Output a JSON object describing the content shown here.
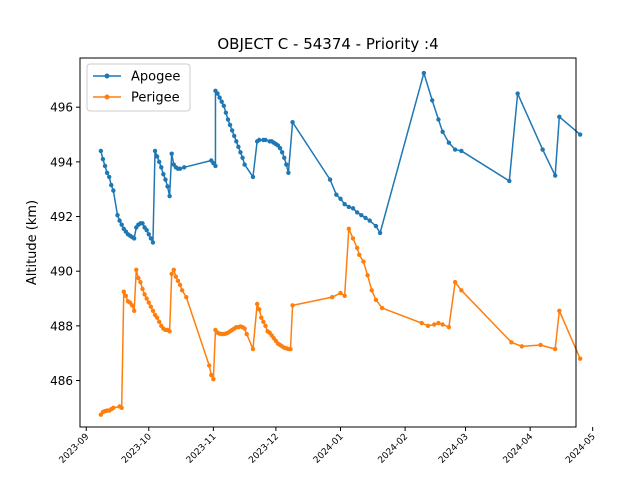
{
  "chart_data": {
    "type": "line",
    "title": "OBJECT C - 54374 - Priority :4",
    "xlabel": "",
    "ylabel": "Altitude (km)",
    "xlim": [
      "2023-08-29",
      "2024-04-23"
    ],
    "ylim": [
      484.3,
      497.8
    ],
    "yticks": [
      486,
      488,
      490,
      492,
      494,
      496
    ],
    "xticks": [
      "2023-09",
      "2023-10",
      "2023-11",
      "2023-12",
      "2024-01",
      "2024-02",
      "2024-03",
      "2024-04",
      "2024-05"
    ],
    "grid": false,
    "legend_position": "upper left",
    "series": [
      {
        "name": "Apogee",
        "color": "#1f77b4",
        "points": [
          [
            "2023-09-08",
            494.4
          ],
          [
            "2023-09-09",
            494.1
          ],
          [
            "2023-09-10",
            493.85
          ],
          [
            "2023-09-11",
            493.6
          ],
          [
            "2023-09-12",
            493.45
          ],
          [
            "2023-09-13",
            493.15
          ],
          [
            "2023-09-14",
            492.95
          ],
          [
            "2023-09-16",
            492.05
          ],
          [
            "2023-09-17",
            491.85
          ],
          [
            "2023-09-18",
            491.7
          ],
          [
            "2023-09-19",
            491.55
          ],
          [
            "2023-09-20",
            491.45
          ],
          [
            "2023-09-21",
            491.35
          ],
          [
            "2023-09-22",
            491.3
          ],
          [
            "2023-09-23",
            491.25
          ],
          [
            "2023-09-24",
            491.2
          ],
          [
            "2023-09-25",
            491.6
          ],
          [
            "2023-09-26",
            491.7
          ],
          [
            "2023-09-27",
            491.75
          ],
          [
            "2023-09-28",
            491.75
          ],
          [
            "2023-09-29",
            491.6
          ],
          [
            "2023-09-30",
            491.5
          ],
          [
            "2023-10-01",
            491.35
          ],
          [
            "2023-10-02",
            491.2
          ],
          [
            "2023-10-03",
            491.05
          ],
          [
            "2023-10-04",
            494.4
          ],
          [
            "2023-10-05",
            494.2
          ],
          [
            "2023-10-06",
            494.0
          ],
          [
            "2023-10-07",
            493.8
          ],
          [
            "2023-10-08",
            493.55
          ],
          [
            "2023-10-09",
            493.35
          ],
          [
            "2023-10-10",
            493.1
          ],
          [
            "2023-10-11",
            492.75
          ],
          [
            "2023-10-12",
            494.3
          ],
          [
            "2023-10-13",
            493.9
          ],
          [
            "2023-10-14",
            493.8
          ],
          [
            "2023-10-15",
            493.75
          ],
          [
            "2023-10-16",
            493.75
          ],
          [
            "2023-10-18",
            493.8
          ],
          [
            "2023-10-31",
            494.05
          ],
          [
            "2023-11-01",
            493.95
          ],
          [
            "2023-11-02",
            493.85
          ],
          [
            "2023-11-02",
            496.6
          ],
          [
            "2023-11-03",
            496.5
          ],
          [
            "2023-11-04",
            496.35
          ],
          [
            "2023-11-05",
            496.2
          ],
          [
            "2023-11-06",
            496.05
          ],
          [
            "2023-11-07",
            495.8
          ],
          [
            "2023-11-08",
            495.55
          ],
          [
            "2023-11-09",
            495.35
          ],
          [
            "2023-11-10",
            495.15
          ],
          [
            "2023-11-11",
            494.95
          ],
          [
            "2023-11-12",
            494.75
          ],
          [
            "2023-11-13",
            494.55
          ],
          [
            "2023-11-14",
            494.35
          ],
          [
            "2023-11-15",
            494.15
          ],
          [
            "2023-11-16",
            493.9
          ],
          [
            "2023-11-20",
            493.45
          ],
          [
            "2023-11-22",
            494.75
          ],
          [
            "2023-11-23",
            494.8
          ],
          [
            "2023-11-25",
            494.8
          ],
          [
            "2023-11-26",
            494.8
          ],
          [
            "2023-11-28",
            494.75
          ],
          [
            "2023-11-29",
            494.75
          ],
          [
            "2023-11-30",
            494.7
          ],
          [
            "2023-12-01",
            494.65
          ],
          [
            "2023-12-02",
            494.6
          ],
          [
            "2023-12-03",
            494.5
          ],
          [
            "2023-12-04",
            494.35
          ],
          [
            "2023-12-05",
            494.15
          ],
          [
            "2023-12-06",
            493.9
          ],
          [
            "2023-12-07",
            493.6
          ],
          [
            "2023-12-09",
            495.45
          ],
          [
            "2023-12-27",
            493.35
          ],
          [
            "2023-12-30",
            492.8
          ],
          [
            "2024-01-01",
            492.65
          ],
          [
            "2024-01-03",
            492.45
          ],
          [
            "2024-01-05",
            492.35
          ],
          [
            "2024-01-07",
            492.3
          ],
          [
            "2024-01-09",
            492.15
          ],
          [
            "2024-01-11",
            492.05
          ],
          [
            "2024-01-13",
            491.95
          ],
          [
            "2024-01-15",
            491.85
          ],
          [
            "2024-01-18",
            491.65
          ],
          [
            "2024-01-20",
            491.4
          ],
          [
            "2024-02-10",
            497.25
          ],
          [
            "2024-02-14",
            496.25
          ],
          [
            "2024-02-17",
            495.55
          ],
          [
            "2024-02-19",
            495.1
          ],
          [
            "2024-02-22",
            494.7
          ],
          [
            "2024-02-25",
            494.45
          ],
          [
            "2024-02-28",
            494.4
          ],
          [
            "2024-03-22",
            493.3
          ],
          [
            "2024-03-26",
            496.5
          ],
          [
            "2024-04-07",
            494.45
          ],
          [
            "2024-04-13",
            493.5
          ],
          [
            "2024-04-15",
            495.65
          ],
          [
            "2024-04-25",
            495.0
          ]
        ]
      },
      {
        "name": "Perigee",
        "color": "#ff7f0e",
        "points": [
          [
            "2023-09-08",
            484.75
          ],
          [
            "2023-09-09",
            484.85
          ],
          [
            "2023-09-10",
            484.88
          ],
          [
            "2023-09-11",
            484.9
          ],
          [
            "2023-09-12",
            484.9
          ],
          [
            "2023-09-13",
            484.95
          ],
          [
            "2023-09-14",
            485.0
          ],
          [
            "2023-09-17",
            485.05
          ],
          [
            "2023-09-18",
            485.0
          ],
          [
            "2023-09-19",
            489.25
          ],
          [
            "2023-09-20",
            489.1
          ],
          [
            "2023-09-21",
            488.9
          ],
          [
            "2023-09-22",
            488.85
          ],
          [
            "2023-09-23",
            488.75
          ],
          [
            "2023-09-24",
            488.55
          ],
          [
            "2023-09-25",
            490.05
          ],
          [
            "2023-09-26",
            489.75
          ],
          [
            "2023-09-27",
            489.6
          ],
          [
            "2023-09-28",
            489.35
          ],
          [
            "2023-09-29",
            489.15
          ],
          [
            "2023-09-30",
            489.0
          ],
          [
            "2023-10-01",
            488.85
          ],
          [
            "2023-10-02",
            488.7
          ],
          [
            "2023-10-03",
            488.55
          ],
          [
            "2023-10-04",
            488.4
          ],
          [
            "2023-10-05",
            488.3
          ],
          [
            "2023-10-06",
            488.15
          ],
          [
            "2023-10-07",
            488.0
          ],
          [
            "2023-10-08",
            487.9
          ],
          [
            "2023-10-09",
            487.85
          ],
          [
            "2023-10-10",
            487.85
          ],
          [
            "2023-10-11",
            487.8
          ],
          [
            "2023-10-12",
            489.9
          ],
          [
            "2023-10-13",
            490.05
          ],
          [
            "2023-10-14",
            489.8
          ],
          [
            "2023-10-15",
            489.65
          ],
          [
            "2023-10-16",
            489.5
          ],
          [
            "2023-10-17",
            489.3
          ],
          [
            "2023-10-19",
            489.05
          ],
          [
            "2023-10-30",
            486.55
          ],
          [
            "2023-10-31",
            486.2
          ],
          [
            "2023-11-01",
            486.05
          ],
          [
            "2023-11-02",
            487.85
          ],
          [
            "2023-11-03",
            487.75
          ],
          [
            "2023-11-04",
            487.72
          ],
          [
            "2023-11-05",
            487.7
          ],
          [
            "2023-11-06",
            487.7
          ],
          [
            "2023-11-07",
            487.72
          ],
          [
            "2023-11-08",
            487.75
          ],
          [
            "2023-11-09",
            487.8
          ],
          [
            "2023-11-10",
            487.85
          ],
          [
            "2023-11-11",
            487.9
          ],
          [
            "2023-11-12",
            487.95
          ],
          [
            "2023-11-13",
            487.95
          ],
          [
            "2023-11-14",
            487.98
          ],
          [
            "2023-11-15",
            487.95
          ],
          [
            "2023-11-16",
            487.9
          ],
          [
            "2023-11-17",
            487.7
          ],
          [
            "2023-11-20",
            487.15
          ],
          [
            "2023-11-22",
            488.8
          ],
          [
            "2023-11-23",
            488.6
          ],
          [
            "2023-11-24",
            488.3
          ],
          [
            "2023-11-25",
            488.15
          ],
          [
            "2023-11-26",
            488.0
          ],
          [
            "2023-11-27",
            487.8
          ],
          [
            "2023-11-28",
            487.75
          ],
          [
            "2023-11-29",
            487.65
          ],
          [
            "2023-11-30",
            487.55
          ],
          [
            "2023-12-01",
            487.45
          ],
          [
            "2023-12-02",
            487.35
          ],
          [
            "2023-12-03",
            487.3
          ],
          [
            "2023-12-04",
            487.25
          ],
          [
            "2023-12-05",
            487.2
          ],
          [
            "2023-12-06",
            487.18
          ],
          [
            "2023-12-07",
            487.15
          ],
          [
            "2023-12-08",
            487.15
          ],
          [
            "2023-12-09",
            488.75
          ],
          [
            "2023-12-28",
            489.05
          ],
          [
            "2024-01-01",
            489.2
          ],
          [
            "2024-01-03",
            489.1
          ],
          [
            "2024-01-05",
            491.55
          ],
          [
            "2024-01-07",
            491.2
          ],
          [
            "2024-01-09",
            490.85
          ],
          [
            "2024-01-10",
            490.6
          ],
          [
            "2024-01-12",
            490.35
          ],
          [
            "2024-01-14",
            489.85
          ],
          [
            "2024-01-16",
            489.3
          ],
          [
            "2024-01-18",
            488.95
          ],
          [
            "2024-01-21",
            488.65
          ],
          [
            "2024-02-09",
            488.1
          ],
          [
            "2024-02-12",
            488.0
          ],
          [
            "2024-02-15",
            488.05
          ],
          [
            "2024-02-17",
            488.1
          ],
          [
            "2024-02-19",
            488.05
          ],
          [
            "2024-02-22",
            487.95
          ],
          [
            "2024-02-25",
            489.6
          ],
          [
            "2024-02-28",
            489.3
          ],
          [
            "2024-03-23",
            487.4
          ],
          [
            "2024-03-28",
            487.25
          ],
          [
            "2024-04-06",
            487.3
          ],
          [
            "2024-04-13",
            487.15
          ],
          [
            "2024-04-15",
            488.55
          ],
          [
            "2024-04-25",
            486.8
          ]
        ]
      }
    ]
  }
}
